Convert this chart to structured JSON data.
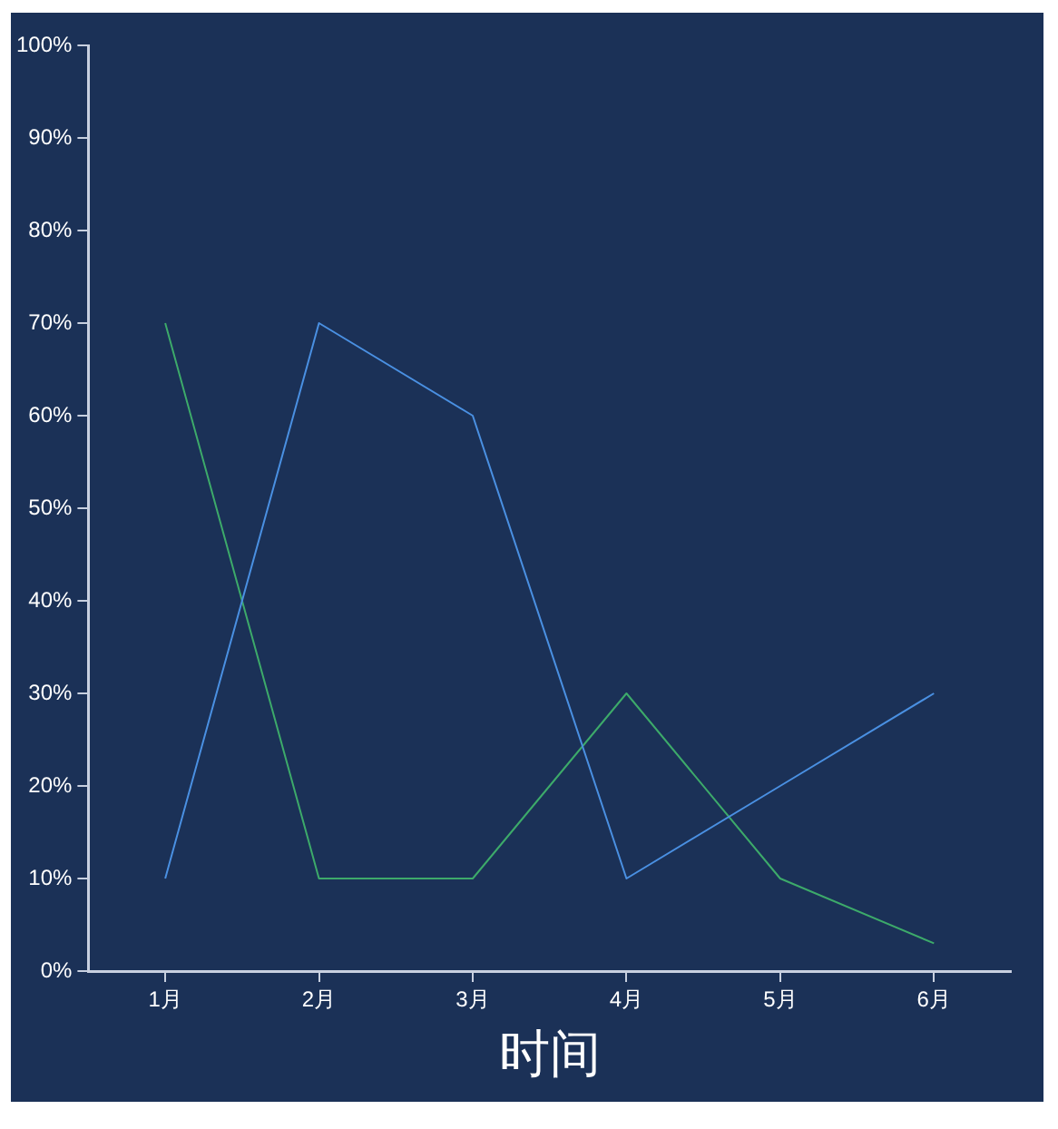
{
  "chart_data": {
    "type": "line",
    "xlabel": "时间",
    "categories": [
      "1月",
      "2月",
      "3月",
      "4月",
      "5月",
      "6月"
    ],
    "series": [
      {
        "color": "#4a90e2",
        "values": [
          10,
          70,
          60,
          10,
          20,
          30
        ]
      },
      {
        "color": "#3daa6a",
        "values": [
          70,
          10,
          10,
          30,
          10,
          3
        ]
      }
    ],
    "ylim": [
      0,
      100
    ],
    "yticks": [
      {
        "value": 0,
        "label": "0%"
      },
      {
        "value": 10,
        "label": "10%"
      },
      {
        "value": 20,
        "label": "20%"
      },
      {
        "value": 30,
        "label": "30%"
      },
      {
        "value": 40,
        "label": "40%"
      },
      {
        "value": 50,
        "label": "50%"
      },
      {
        "value": 60,
        "label": "60%"
      },
      {
        "value": 70,
        "label": "70%"
      },
      {
        "value": 80,
        "label": "80%"
      },
      {
        "value": 90,
        "label": "90%"
      },
      {
        "value": 100,
        "label": "100%"
      }
    ],
    "legend": false,
    "marker": "none",
    "line_style": "solid"
  }
}
